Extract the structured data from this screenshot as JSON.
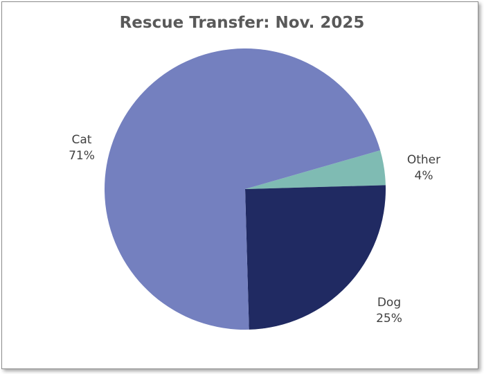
{
  "chart_data": {
    "type": "pie",
    "title": "Rescue Transfer: Nov. 2025",
    "slices": [
      {
        "label": "Cat",
        "value": 71,
        "percent_label": "71%",
        "color": "#7480bf"
      },
      {
        "label": "Other",
        "value": 4,
        "percent_label": "4%",
        "color": "#7fbbb3"
      },
      {
        "label": "Dog",
        "value": 25,
        "percent_label": "25%",
        "color": "#202a62"
      }
    ],
    "legend": "none",
    "data_labels": "outside"
  }
}
